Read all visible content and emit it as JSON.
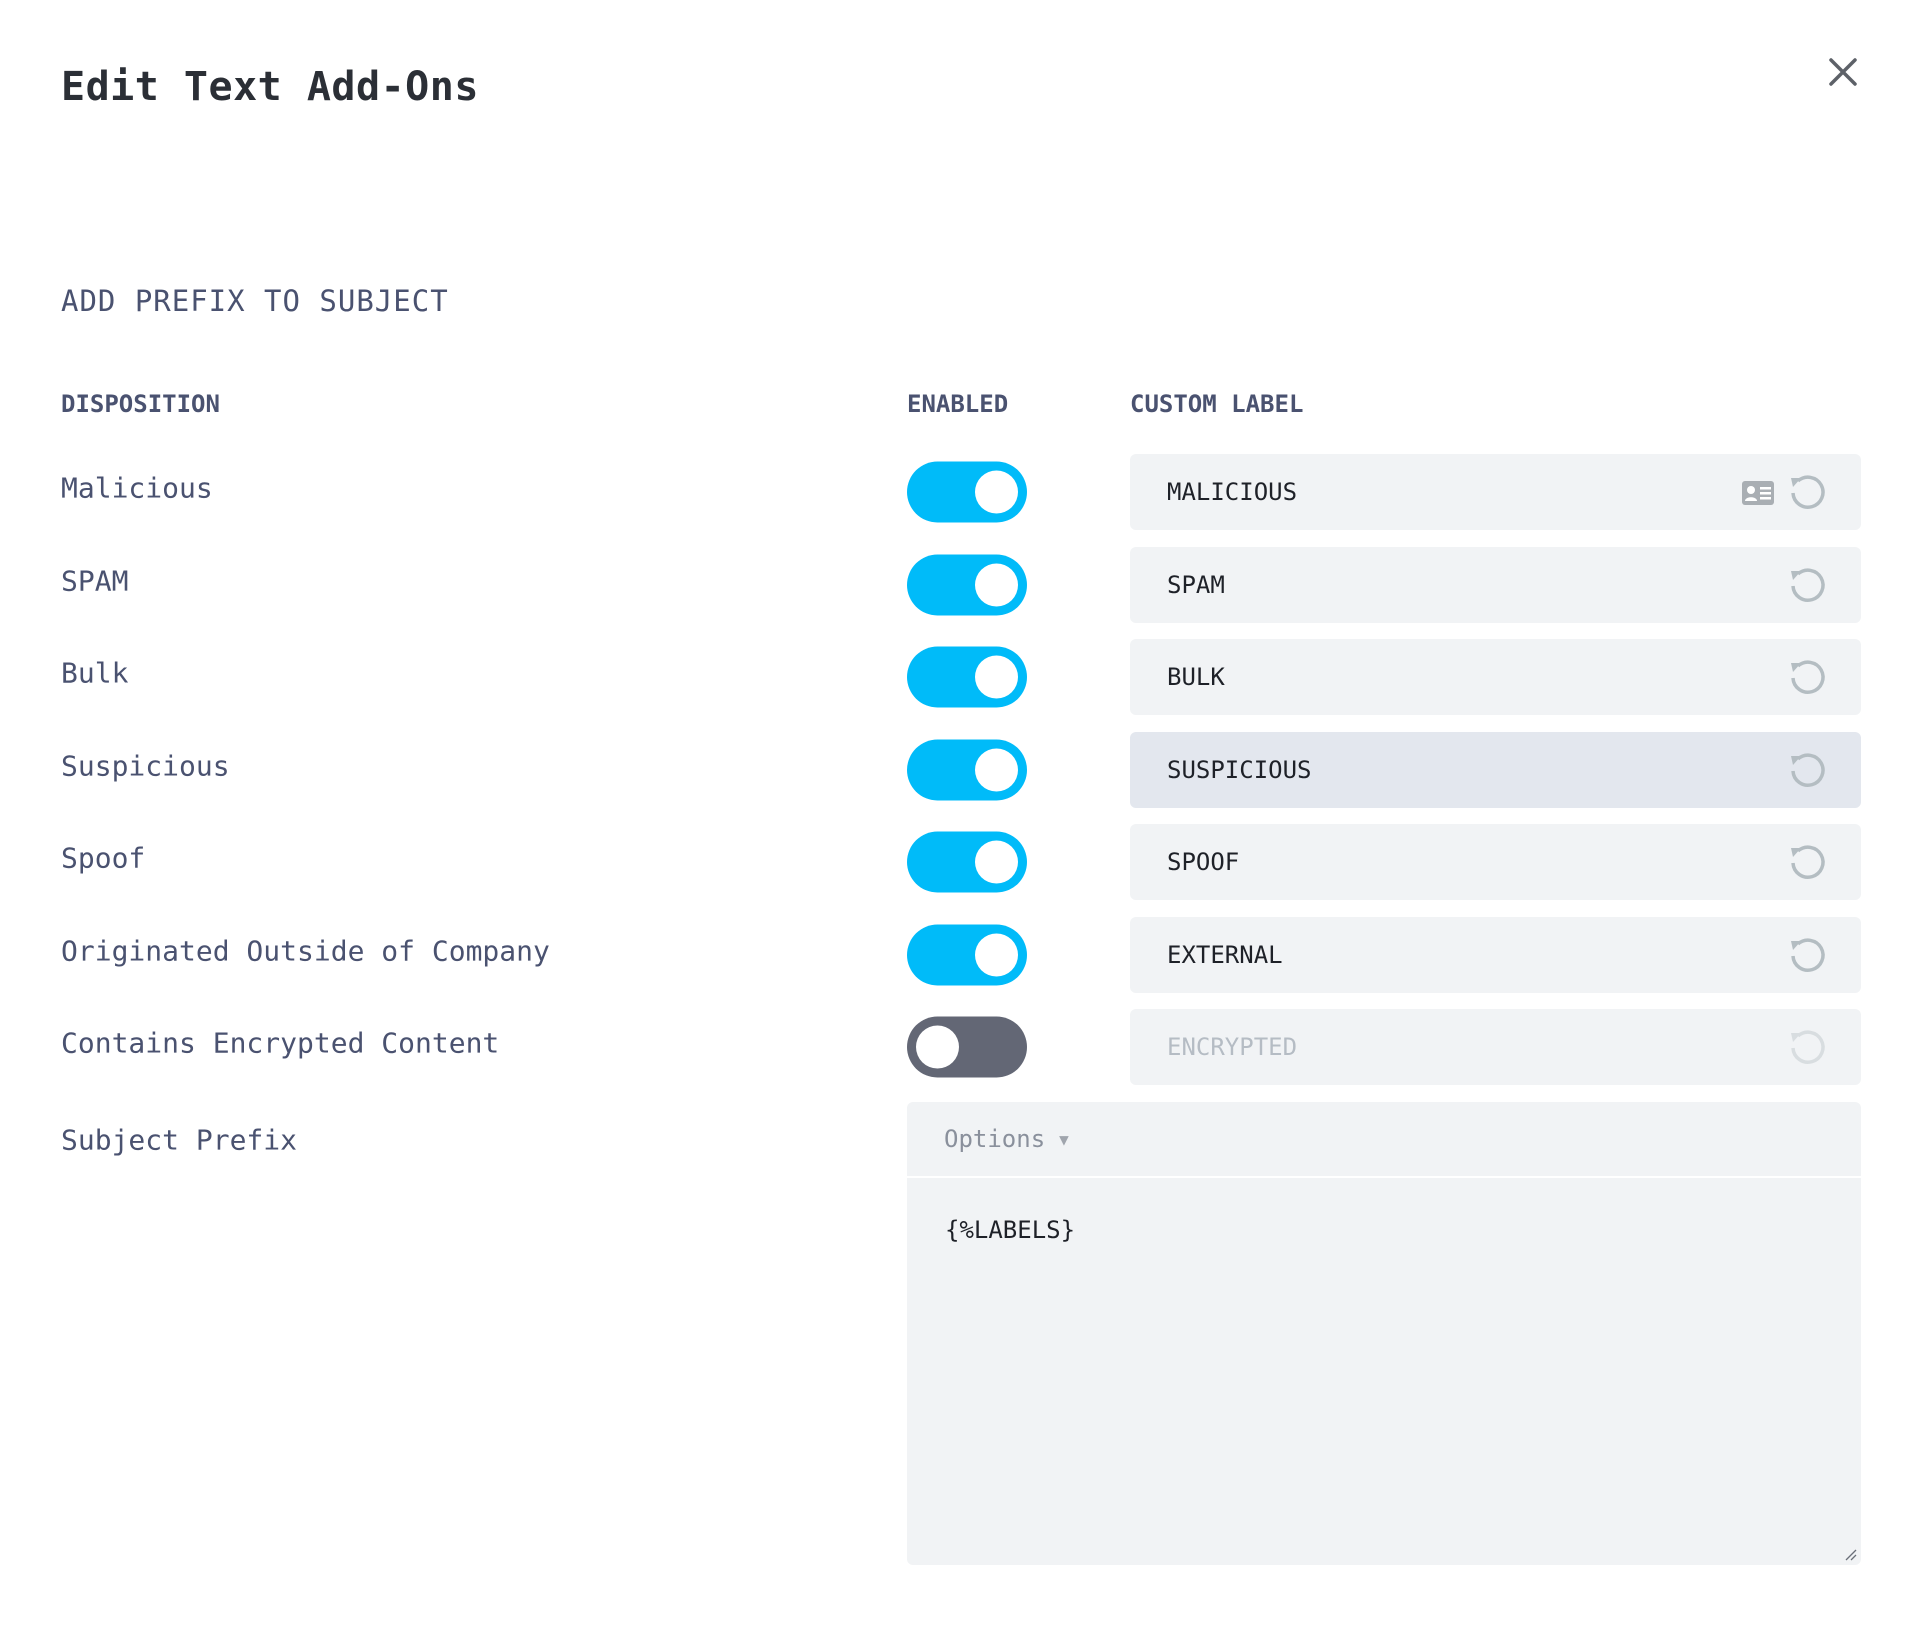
{
  "dialog": {
    "title": "Edit Text Add-Ons",
    "close_icon": "close-icon"
  },
  "section": {
    "title": "ADD PREFIX TO SUBJECT"
  },
  "columns": {
    "disposition": "DISPOSITION",
    "enabled": "ENABLED",
    "custom_label": "CUSTOM LABEL"
  },
  "rows": [
    {
      "disposition": "Malicious",
      "enabled": true,
      "label": "MALICIOUS"
    },
    {
      "disposition": "SPAM",
      "enabled": true,
      "label": "SPAM"
    },
    {
      "disposition": "Bulk",
      "enabled": true,
      "label": "BULK"
    },
    {
      "disposition": "Suspicious",
      "enabled": true,
      "label": "SUSPICIOUS"
    },
    {
      "disposition": "Spoof",
      "enabled": true,
      "label": "SPOOF"
    },
    {
      "disposition": "Originated Outside of Company",
      "enabled": true,
      "label": "EXTERNAL"
    },
    {
      "disposition": "Contains Encrypted Content",
      "enabled": false,
      "label": "ENCRYPTED"
    }
  ],
  "subject_prefix": {
    "label": "Subject Prefix",
    "options_label": "Options",
    "value": "{%LABELS}"
  },
  "colors": {
    "toggle_on": "#00bbf9",
    "toggle_off": "#636775",
    "field_bg": "#f1f3f5"
  }
}
